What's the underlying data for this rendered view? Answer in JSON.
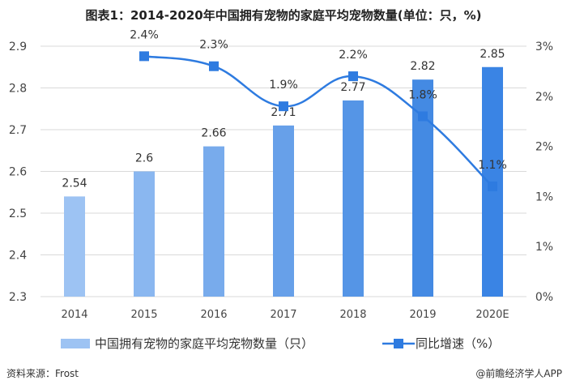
{
  "chart_data": {
    "type": "bar+line",
    "title": "图表1：2014-2020年中国拥有宠物的家庭平均宠物数量(单位：只，%)",
    "categories": [
      "2014",
      "2015",
      "2016",
      "2017",
      "2018",
      "2019",
      "2020E"
    ],
    "series": [
      {
        "name": "中国拥有宠物的家庭平均宠物数量（只）",
        "type": "bar",
        "axis": "left",
        "values": [
          2.54,
          2.6,
          2.66,
          2.71,
          2.77,
          2.82,
          2.85
        ],
        "labels": [
          "2.54",
          "2.6",
          "2.66",
          "2.71",
          "2.77",
          "2.82",
          "2.85"
        ],
        "colors": [
          "#9dc3f3",
          "#8ab7f0",
          "#78abec",
          "#67a0e9",
          "#5595e6",
          "#448ae3",
          "#3a84e4"
        ]
      },
      {
        "name": "同比增速（%）",
        "type": "line",
        "axis": "right",
        "values": [
          null,
          2.4,
          2.3,
          1.9,
          2.2,
          1.8,
          1.1
        ],
        "labels": [
          "",
          "2.4%",
          "2.3%",
          "1.9%",
          "2.2%",
          "1.8%",
          "1.1%"
        ],
        "color": "#2e7be0"
      }
    ],
    "left_axis": {
      "ylim": [
        2.3,
        2.9
      ],
      "ticks": [
        2.3,
        2.4,
        2.5,
        2.6,
        2.7,
        2.8,
        2.9
      ],
      "tick_labels": [
        "2.3",
        "2.4",
        "2.5",
        "2.6",
        "2.7",
        "2.8",
        "2.9"
      ]
    },
    "right_axis": {
      "ylim": [
        0,
        2.5
      ],
      "ticks": [
        0,
        0.5,
        1,
        1.5,
        2,
        2.5
      ],
      "tick_labels": [
        "0%",
        "1%",
        "1%",
        "2%",
        "2%",
        "3%"
      ]
    },
    "grid": true,
    "legend": "bottom"
  },
  "source": "资料来源：Frost",
  "credit": "@前瞻经济学人APP"
}
